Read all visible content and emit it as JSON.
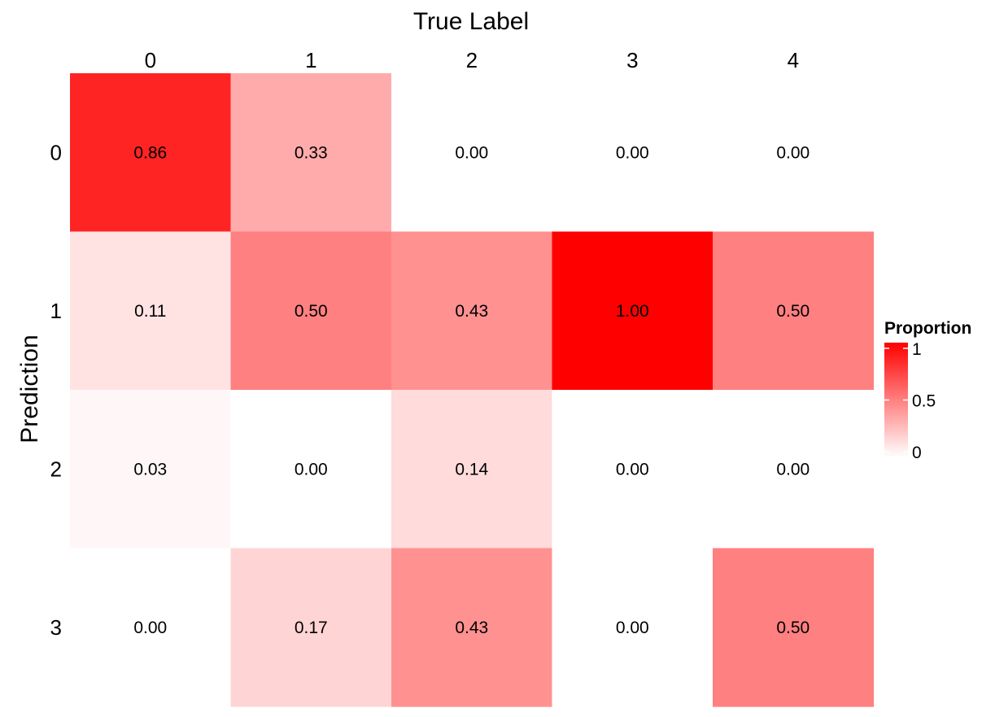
{
  "chart_data": {
    "type": "heatmap",
    "title": "",
    "xlabel": "True Label",
    "ylabel": "Prediction",
    "x_categories": [
      "0",
      "1",
      "2",
      "3",
      "4"
    ],
    "y_categories": [
      "0",
      "1",
      "2",
      "3"
    ],
    "values": [
      [
        0.86,
        0.33,
        0.0,
        0.0,
        0.0
      ],
      [
        0.11,
        0.5,
        0.43,
        1.0,
        0.5
      ],
      [
        0.03,
        0.0,
        0.14,
        0.0,
        0.0
      ],
      [
        0.0,
        0.17,
        0.43,
        0.0,
        0.5
      ]
    ],
    "cell_labels": [
      [
        "0.86",
        "0.33",
        "0.00",
        "0.00",
        "0.00"
      ],
      [
        "0.11",
        "0.50",
        "0.43",
        "1.00",
        "0.50"
      ],
      [
        "0.03",
        "0.00",
        "0.14",
        "0.00",
        "0.00"
      ],
      [
        "0.00",
        "0.17",
        "0.43",
        "0.00",
        "0.50"
      ]
    ],
    "x_axis_position": "top",
    "legend": {
      "title": "Proportion",
      "ticks": [
        "1",
        "0.5",
        "0"
      ],
      "range": [
        0,
        1
      ],
      "placement": "right"
    },
    "color_low": "#ffffff",
    "color_high": "#ff0000",
    "grid": false
  }
}
